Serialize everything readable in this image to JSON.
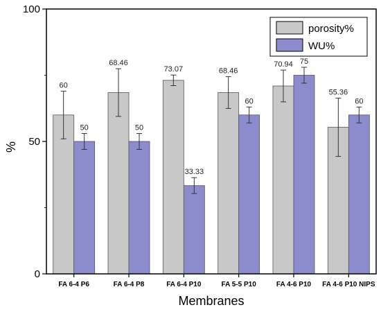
{
  "chart_data": {
    "type": "bar",
    "xlabel": "Membranes",
    "ylabel": "%",
    "ylim": [
      0,
      100
    ],
    "yticks": [
      "0",
      "50",
      "100"
    ],
    "grid": false,
    "legend_position": "top-right",
    "categories": [
      "FA 6-4 P6",
      "FA 6-4 P8",
      "FA 6-4 P10",
      "FA 5-5 P10",
      "FA 4-6 P10",
      "FA 4-6 P10 NIPS"
    ],
    "series": [
      {
        "name": "porosity%",
        "color": "#c8c8c8",
        "values": [
          60,
          68.46,
          73.07,
          68.46,
          70.94,
          55.36
        ],
        "labels": [
          "60",
          "68.46",
          "73.07",
          "68.46",
          "70.94",
          "55.36"
        ],
        "errors": [
          9,
          9,
          2,
          6,
          6,
          11
        ]
      },
      {
        "name": "WU%",
        "color": "#8c8ccc",
        "values": [
          50,
          50,
          33.33,
          60,
          75,
          60
        ],
        "labels": [
          "50",
          "50",
          "33.33",
          "60",
          "75",
          "60"
        ],
        "errors": [
          3,
          3,
          3,
          3,
          3,
          3
        ]
      }
    ]
  }
}
